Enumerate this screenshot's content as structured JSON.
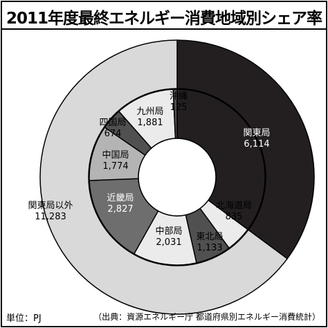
{
  "title": "2011年度最終エネルギー消費地域別シェア率",
  "unit_note": "単位：PJ",
  "source_note": "（出典：資源エネルギー庁 都道府県別エネルギー消費統計）",
  "colors": {
    "kanto": "#231f20",
    "outer_other": "#d9d9d9",
    "inner_light": "#ebebeb",
    "inner_mid": "#b4b4b4",
    "inner_dark": "#6e6e6e",
    "inner_darker": "#505050",
    "stroke": "#000000"
  },
  "chart_data": [
    {
      "type": "pie",
      "ring": "outer",
      "slices": [
        {
          "label": "関東局",
          "value_label": "6,114",
          "value": 6114,
          "color_key": "kanto"
        },
        {
          "label": "関東局以外",
          "value_label": "11,283",
          "value": 11283,
          "color_key": "outer_other"
        }
      ]
    },
    {
      "type": "pie",
      "ring": "inner",
      "slices": [
        {
          "label": "関東局",
          "value_label": "6,114",
          "value": 6114,
          "color_key": "kanto"
        },
        {
          "label": "北海道局",
          "value_label": "835",
          "value": 835,
          "color_key": "inner_light"
        },
        {
          "label": "東北局",
          "value_label": "1,133",
          "value": 1133,
          "color_key": "inner_darker"
        },
        {
          "label": "中部局",
          "value_label": "2,031",
          "value": 2031,
          "color_key": "inner_light"
        },
        {
          "label": "近畿局",
          "value_label": "2,827",
          "value": 2827,
          "color_key": "inner_dark"
        },
        {
          "label": "中国局",
          "value_label": "1,774",
          "value": 1774,
          "color_key": "inner_mid"
        },
        {
          "label": "四国局",
          "value_label": "674",
          "value": 674,
          "color_key": "inner_darker"
        },
        {
          "label": "九州局",
          "value_label": "1,881",
          "value": 1881,
          "color_key": "inner_light"
        },
        {
          "label": "沖縄",
          "value_label": "125",
          "value": 125,
          "color_key": "inner_darker"
        }
      ]
    }
  ]
}
